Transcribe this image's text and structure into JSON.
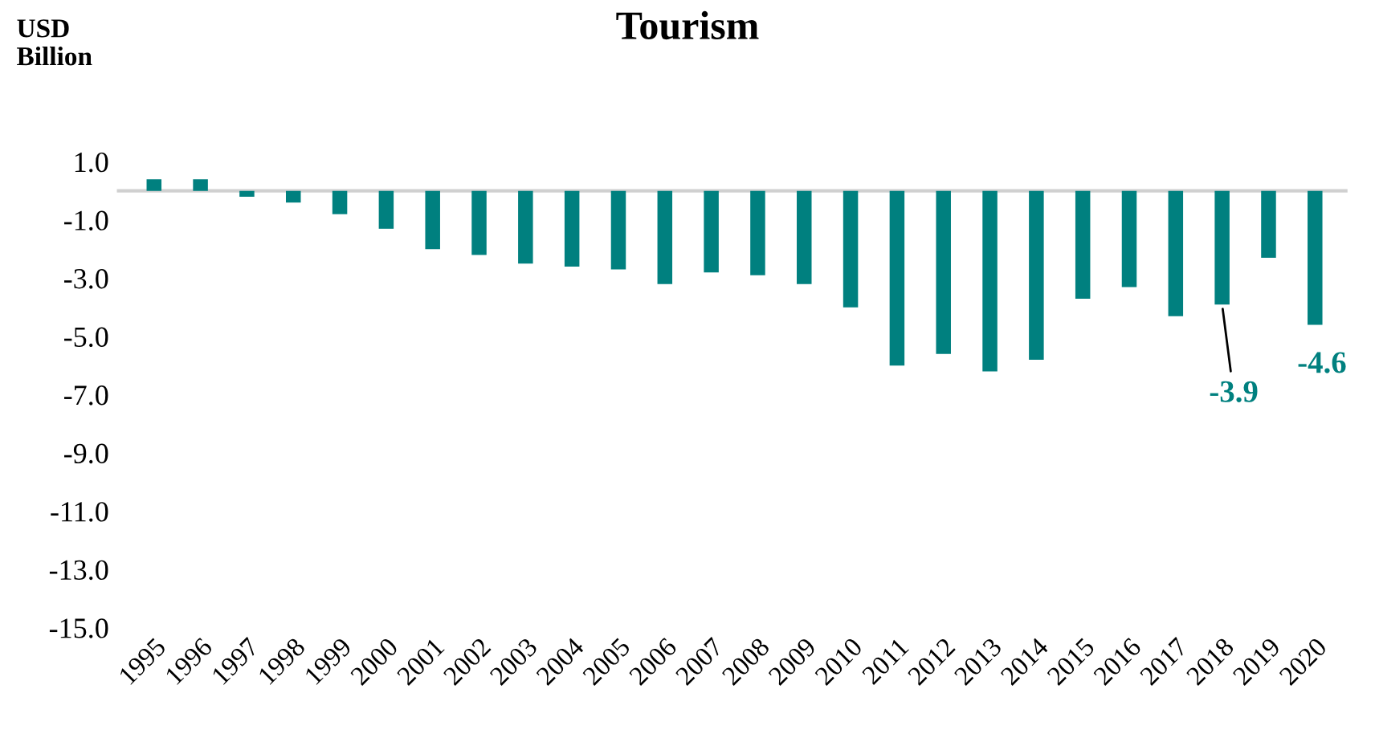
{
  "chart_data": {
    "type": "bar",
    "title": "Tourism",
    "ylabel": "USD\nBillion",
    "categories": [
      "1995",
      "1996",
      "1997",
      "1998",
      "1999",
      "2000",
      "2001",
      "2002",
      "2003",
      "2004",
      "2005",
      "2006",
      "2007",
      "2008",
      "2009",
      "2010",
      "2011",
      "2012",
      "2013",
      "2014",
      "2015",
      "2016",
      "2017",
      "2018",
      "2019",
      "2020"
    ],
    "values": [
      0.4,
      0.4,
      -0.2,
      -0.4,
      -0.8,
      -1.3,
      -2.0,
      -2.2,
      -2.5,
      -2.6,
      -2.7,
      -3.2,
      -2.8,
      -2.9,
      -3.2,
      -4.0,
      -6.0,
      -5.6,
      -6.2,
      -5.8,
      -3.7,
      -3.3,
      -4.3,
      -3.9,
      -2.3,
      -4.6
    ],
    "color": "#00807f",
    "ylim": [
      -15.0,
      1.0
    ],
    "yticks": [
      {
        "value": 1,
        "label": "1.0"
      },
      {
        "value": -1,
        "label": "-1.0"
      },
      {
        "value": -3,
        "label": "-3.0"
      },
      {
        "value": -5,
        "label": "-5.0"
      },
      {
        "value": -7,
        "label": "-7.0"
      },
      {
        "value": -9,
        "label": "-9.0"
      },
      {
        "value": -11,
        "label": "-11.0"
      },
      {
        "value": -13,
        "label": "-13.0"
      },
      {
        "value": -15,
        "label": "-15.0"
      }
    ],
    "annotations": [
      {
        "text": "-3.9",
        "x": "2018",
        "y": -3.9
      },
      {
        "text": "-4.6",
        "x": "2020",
        "y": -4.6
      }
    ],
    "grid": false
  }
}
